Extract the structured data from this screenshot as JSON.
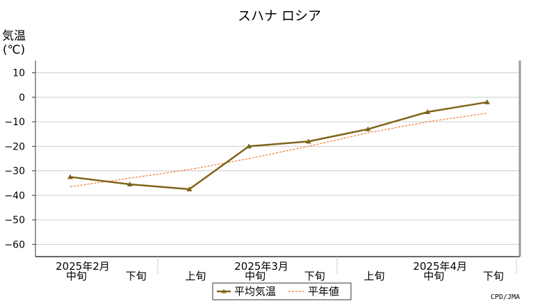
{
  "chart_data": {
    "type": "line",
    "title": "スハナ ロシア",
    "ylabel_line1": "気温",
    "ylabel_line2": "(℃)",
    "ylim": [
      -65,
      15
    ],
    "yticks": [
      10,
      0,
      -10,
      -20,
      -30,
      -40,
      -50,
      -60
    ],
    "grid": true,
    "x_periods": [
      "中旬",
      "下旬",
      "上旬",
      "中旬",
      "下旬",
      "上旬",
      "中旬",
      "下旬"
    ],
    "month_labels": [
      {
        "label": "2025年2月",
        "index": 0
      },
      {
        "label": "2025年3月",
        "index": 3
      },
      {
        "label": "2025年4月",
        "index": 6
      }
    ],
    "series": [
      {
        "name": "平均気温",
        "color": "#7f6418",
        "values": [
          -32.5,
          -35.5,
          -37.5,
          -20,
          -18,
          -13,
          -6,
          -2
        ]
      },
      {
        "name": "平年値",
        "color": "#f07830",
        "dashed": true,
        "values": [
          -36.5,
          -33,
          -29.5,
          -25,
          -20,
          -14.5,
          -10,
          -6.5
        ]
      }
    ],
    "legend_position": "bottom-center",
    "credit": "CPD/JMA"
  }
}
